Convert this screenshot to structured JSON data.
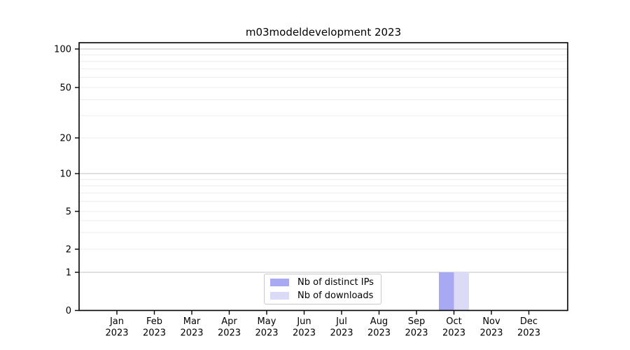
{
  "chart_data": {
    "type": "bar",
    "title": "m03modeldevelopment 2023",
    "categories": [
      [
        "Jan",
        "2023"
      ],
      [
        "Feb",
        "2023"
      ],
      [
        "Mar",
        "2023"
      ],
      [
        "Apr",
        "2023"
      ],
      [
        "May",
        "2023"
      ],
      [
        "Jun",
        "2023"
      ],
      [
        "Jul",
        "2023"
      ],
      [
        "Aug",
        "2023"
      ],
      [
        "Sep",
        "2023"
      ],
      [
        "Oct",
        "2023"
      ],
      [
        "Nov",
        "2023"
      ],
      [
        "Dec",
        "2023"
      ]
    ],
    "series": [
      {
        "name": "Nb of distinct IPs",
        "color": "#a8a8f3",
        "values": [
          0,
          0,
          0,
          0,
          0,
          0,
          0,
          0,
          0,
          1,
          0,
          0
        ]
      },
      {
        "name": "Nb of downloads",
        "color": "#dbdbf8",
        "values": [
          0,
          0,
          0,
          0,
          0,
          0,
          0,
          0,
          0,
          1,
          0,
          0
        ]
      }
    ],
    "xlabel": "",
    "ylabel": "",
    "y_scale": "symlog",
    "ylim": [
      0,
      100
    ],
    "y_ticks": [
      0,
      1,
      2,
      5,
      10,
      20,
      50,
      100
    ],
    "y_major_gridlines": [
      1,
      10,
      100
    ],
    "y_minor_gridlines": [
      2,
      3,
      4,
      5,
      6,
      7,
      8,
      9,
      20,
      30,
      40,
      50,
      60,
      70,
      80,
      90
    ],
    "grid": "horizontal",
    "legend_position": "lower-center"
  },
  "colors": {
    "spine": "#000000",
    "tick_text": "#000000",
    "major_grid": "#c2c2c2",
    "minor_grid": "#ececec"
  }
}
